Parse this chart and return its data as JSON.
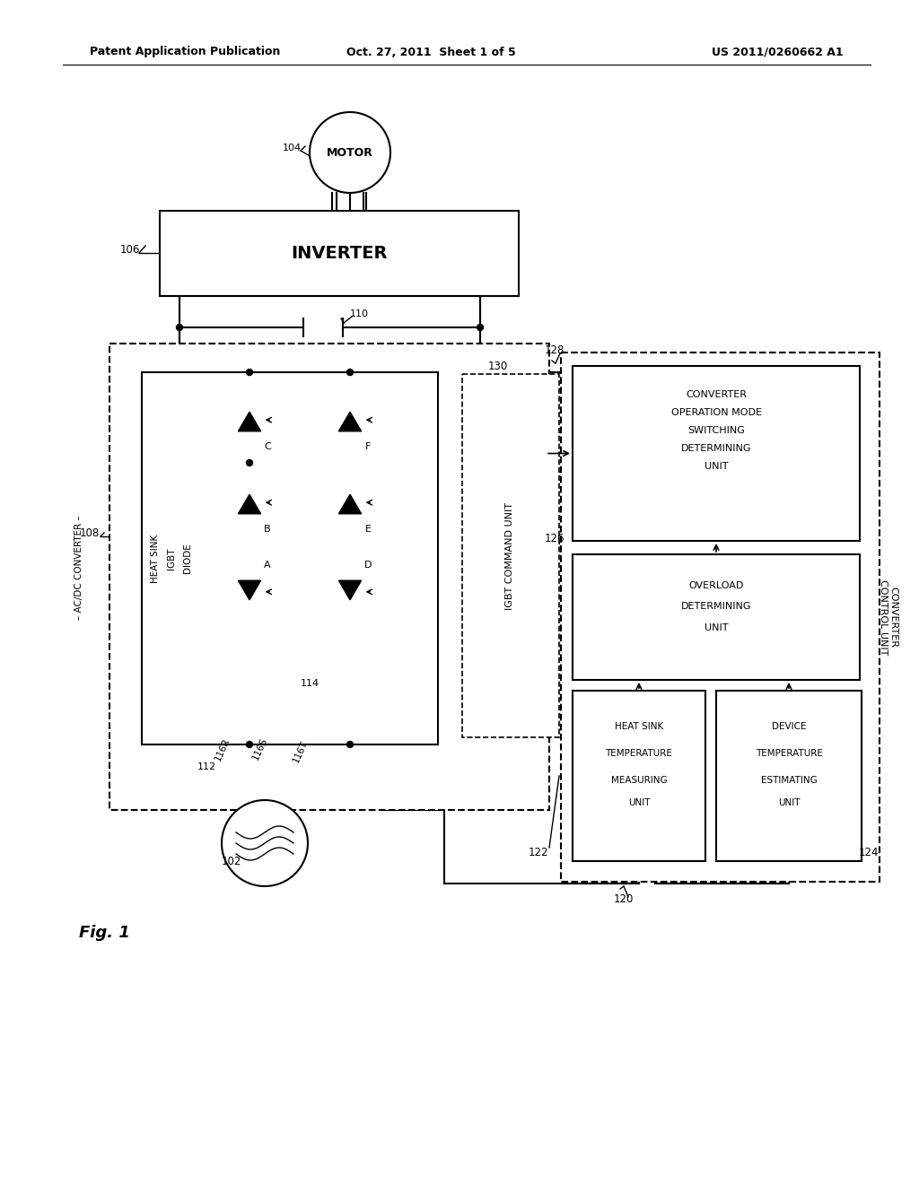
{
  "bg_color": "#ffffff",
  "lc": "#000000",
  "header_left": "Patent Application Publication",
  "header_mid": "Oct. 27, 2011  Sheet 1 of 5",
  "header_right": "US 2011/0260662 A1"
}
